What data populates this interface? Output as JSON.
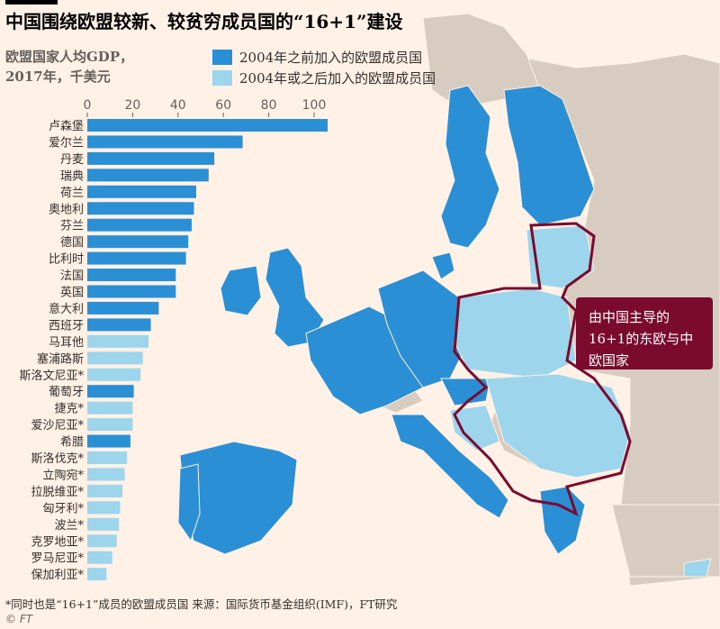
{
  "title": "中国围绕欧盟较新、较贫穷成员国的“16+1”建设",
  "subtitle_line1": "欧盟国家人均GDP，",
  "subtitle_line2": "2017年，千美元",
  "legend": [
    {
      "label": "2004年之前加入的欧盟成员国",
      "color": "#2a8fd4"
    },
    {
      "label": "2004年或之后加入的欧盟成员国",
      "color": "#9dd5ec"
    }
  ],
  "callout": {
    "line1": "由中国主导的",
    "line2": "16+1的东欧与中",
    "line3": "欧国家"
  },
  "footnote": "*同时也是“16+1”成员的欧盟成员国  来源：国际货币基金组织(IMF)，FT研究",
  "copyright": "© FT",
  "colors": {
    "old_members": "#2a8fd4",
    "new_members": "#9dd5ec",
    "non_eu": "#d8cbc0",
    "background": "#fff1e5",
    "sixteen_plus_one": "#7a0a2e"
  },
  "chart_data": {
    "type": "bar",
    "orientation": "horizontal",
    "xlim": [
      0,
      110
    ],
    "xticks": [
      "0",
      "20",
      "40",
      "60",
      "80",
      "100"
    ],
    "categories": [
      "卢森堡",
      "爱尔兰",
      "丹麦",
      "瑞典",
      "荷兰",
      "奥地利",
      "芬兰",
      "德国",
      "比利时",
      "法国",
      "英国",
      "意大利",
      "西班牙",
      "马耳他",
      "塞浦路斯",
      "斯洛文尼亚*",
      "葡萄牙",
      "捷克*",
      "爱沙尼亚*",
      "希腊",
      "斯洛伐克*",
      "立陶宛*",
      "拉脱维亚*",
      "匈牙利*",
      "波兰*",
      "克罗地亚*",
      "罗马尼亚*",
      "保加利亚*"
    ],
    "values": [
      106,
      68.5,
      56,
      53.5,
      48,
      47,
      46,
      44.5,
      43.5,
      39,
      39,
      31.5,
      28,
      27,
      24.5,
      23.5,
      20.5,
      20,
      20,
      19,
      17.5,
      16.5,
      15.5,
      14.5,
      14,
      13,
      11,
      8.5
    ],
    "group": [
      "old",
      "old",
      "old",
      "old",
      "old",
      "old",
      "old",
      "old",
      "old",
      "old",
      "old",
      "old",
      "old",
      "new",
      "new",
      "new",
      "old",
      "new",
      "new",
      "old",
      "new",
      "new",
      "new",
      "new",
      "new",
      "new",
      "new",
      "new"
    ]
  }
}
